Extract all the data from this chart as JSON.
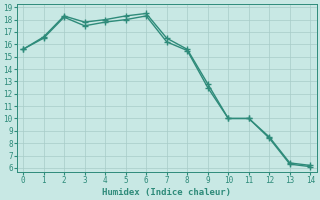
{
  "line1_x": [
    0,
    1,
    2,
    3,
    4,
    5,
    6,
    7,
    8,
    9,
    10,
    11,
    12,
    13,
    14
  ],
  "line1_y": [
    15.6,
    16.6,
    18.3,
    17.8,
    18.0,
    18.3,
    18.5,
    16.5,
    15.6,
    12.8,
    10.0,
    10.0,
    8.5,
    6.4,
    6.2
  ],
  "line2_x": [
    0,
    1,
    2,
    3,
    4,
    5,
    6,
    7,
    8,
    9,
    10,
    11,
    12,
    13,
    14
  ],
  "line2_y": [
    15.6,
    16.5,
    18.2,
    17.5,
    17.8,
    18.0,
    18.3,
    16.2,
    15.5,
    12.5,
    10.0,
    10.0,
    8.4,
    6.3,
    6.1
  ],
  "color": "#2e8b7a",
  "xlabel": "Humidex (Indice chaleur)",
  "ylim_min": 6,
  "ylim_max": 19,
  "xlim_min": 0,
  "xlim_max": 14,
  "yticks": [
    6,
    7,
    8,
    9,
    10,
    11,
    12,
    13,
    14,
    15,
    16,
    17,
    18,
    19
  ],
  "xticks": [
    0,
    1,
    2,
    3,
    4,
    5,
    6,
    7,
    8,
    9,
    10,
    11,
    12,
    13,
    14
  ],
  "bg_color": "#c8e8e4",
  "grid_color": "#a8ccc8"
}
